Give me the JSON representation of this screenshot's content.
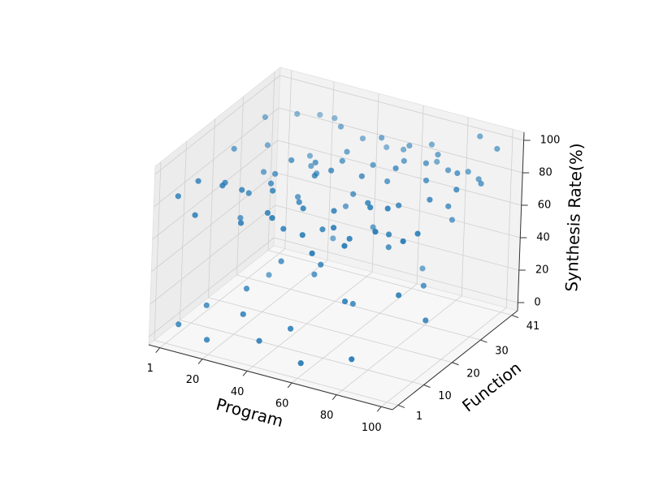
{
  "chart_data": {
    "type": "scatter3d",
    "color": "#1f77b4",
    "x_label": "Program",
    "y_label": "Function",
    "z_label": "Synthesis Rate(%)",
    "xlim": [
      -4,
      105
    ],
    "ylim": [
      -1,
      43
    ],
    "zlim": [
      -5,
      105
    ],
    "xticks": [
      1,
      20,
      40,
      60,
      80,
      100
    ],
    "yticks": [
      1,
      10,
      20,
      30,
      41
    ],
    "zticks": [
      0,
      20,
      40,
      60,
      80,
      100
    ],
    "grid": true,
    "x": [
      3,
      8,
      12,
      15,
      20,
      22,
      25,
      28,
      30,
      33,
      35,
      38,
      40,
      42,
      45,
      47,
      50,
      52,
      55,
      57,
      60,
      62,
      65,
      67,
      70,
      72,
      75,
      77,
      80,
      82,
      85,
      87,
      90,
      92,
      95,
      97,
      99,
      5,
      10,
      14,
      18,
      24,
      27,
      32,
      36,
      41,
      44,
      48,
      53,
      58,
      63,
      68,
      73,
      78,
      83,
      88,
      93,
      98,
      6,
      16,
      26,
      37,
      46,
      56,
      66,
      76,
      86,
      96,
      62,
      71,
      81,
      54,
      44,
      34,
      91,
      4,
      10,
      18,
      25,
      30,
      35,
      40,
      45,
      50,
      55,
      60,
      65,
      70,
      75,
      80,
      85,
      90,
      95,
      20,
      38,
      58,
      72,
      88,
      15,
      48
    ],
    "y": [
      2,
      5,
      1,
      9,
      4,
      12,
      7,
      15,
      3,
      18,
      10,
      6,
      21,
      14,
      2,
      25,
      9,
      17,
      5,
      28,
      12,
      20,
      8,
      31,
      16,
      24,
      4,
      35,
      19,
      27,
      11,
      38,
      22,
      30,
      14,
      40,
      33,
      20,
      28,
      35,
      40,
      32,
      38,
      26,
      33,
      37,
      29,
      40,
      34,
      38,
      36,
      40,
      38,
      30,
      34,
      41,
      37,
      25,
      30,
      22,
      18,
      24,
      16,
      22,
      26,
      12,
      6,
      8,
      3,
      9,
      15,
      13,
      7,
      20,
      28,
      3,
      8,
      2,
      10,
      5,
      14,
      3,
      18,
      6,
      12,
      2,
      16,
      9,
      20,
      4,
      25,
      12,
      18,
      22,
      30,
      28,
      35,
      32,
      15,
      26
    ],
    "z": [
      85,
      92,
      78,
      88,
      95,
      80,
      90,
      84,
      77,
      96,
      89,
      82,
      93,
      79,
      87,
      91,
      85,
      98,
      76,
      88,
      83,
      94,
      80,
      90,
      86,
      97,
      78,
      92,
      84,
      89,
      95,
      81,
      87,
      93,
      79,
      96,
      85,
      90,
      83,
      94,
      88,
      76,
      92,
      81,
      97,
      86,
      90,
      79,
      95,
      84,
      91,
      88,
      82,
      94,
      86,
      99,
      80,
      92,
      96,
      77,
      85,
      81,
      94,
      78,
      84,
      91,
      88,
      83,
      70,
      74,
      72,
      68,
      73,
      71,
      75,
      5,
      12,
      2,
      25,
      18,
      40,
      8,
      30,
      15,
      48,
      3,
      22,
      35,
      55,
      10,
      28,
      42,
      20,
      15,
      33,
      50,
      20,
      60,
      58,
      62
    ]
  }
}
